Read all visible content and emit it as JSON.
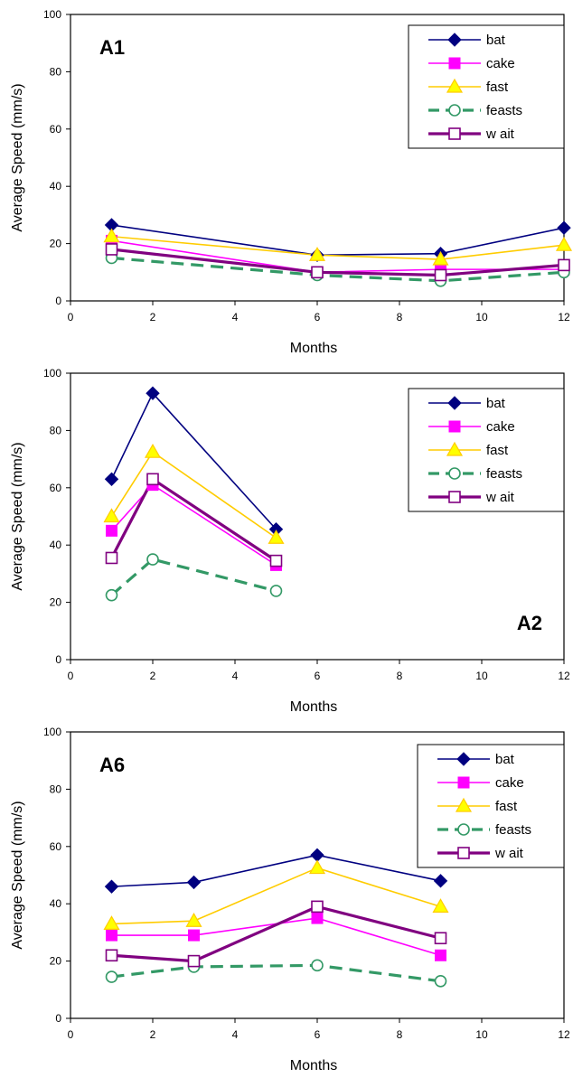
{
  "colors": {
    "bat": "#000080",
    "cake": "#ff00ff",
    "fast": "#ffcc00",
    "fast_fill": "#ffff00",
    "feasts": "#339966",
    "wait": "#800080"
  },
  "legend": [
    "bat",
    "cake",
    "fast",
    "feasts",
    "w ait"
  ],
  "chart_data": [
    {
      "type": "line",
      "panel_label": "A1",
      "panel_label_position": "top-left",
      "xlabel": "Months",
      "ylabel": "Average Speed (mm/s)",
      "xlim": [
        0,
        12
      ],
      "ylim": [
        0,
        100
      ],
      "xticks": [
        0,
        2,
        4,
        6,
        8,
        10,
        12
      ],
      "yticks": [
        0,
        20,
        40,
        60,
        80,
        100
      ],
      "grid": false,
      "legend_position": "top-right",
      "x": [
        1,
        6,
        9,
        12
      ],
      "series": [
        {
          "name": "bat",
          "values": [
            26.5,
            16,
            16.5,
            25.5
          ]
        },
        {
          "name": "cake",
          "values": [
            21,
            10,
            11,
            11
          ]
        },
        {
          "name": "fast",
          "values": [
            22.5,
            16,
            14.5,
            19.5
          ]
        },
        {
          "name": "feasts",
          "values": [
            15,
            9,
            7,
            10
          ]
        },
        {
          "name": "w ait",
          "values": [
            18,
            10,
            9,
            12.5
          ]
        }
      ]
    },
    {
      "type": "line",
      "panel_label": "A2",
      "panel_label_position": "bottom-right",
      "xlabel": "Months",
      "ylabel": "Average Speed (mm/s)",
      "xlim": [
        0,
        12
      ],
      "ylim": [
        0,
        100
      ],
      "xticks": [
        0,
        2,
        4,
        6,
        8,
        10,
        12
      ],
      "yticks": [
        0,
        20,
        40,
        60,
        80,
        100
      ],
      "grid": false,
      "legend_position": "top-right",
      "x": [
        1,
        2,
        5
      ],
      "series": [
        {
          "name": "bat",
          "values": [
            63,
            93,
            45.5
          ]
        },
        {
          "name": "cake",
          "values": [
            45,
            61,
            33
          ]
        },
        {
          "name": "fast",
          "values": [
            50,
            72.5,
            42.5
          ]
        },
        {
          "name": "feasts",
          "values": [
            22.5,
            35,
            24
          ]
        },
        {
          "name": "w ait",
          "values": [
            35.5,
            63,
            34.5
          ]
        }
      ]
    },
    {
      "type": "line",
      "panel_label": "A6",
      "panel_label_position": "top-left",
      "xlabel": "Months",
      "ylabel": "Average Speed (mm/s)",
      "xlim": [
        0,
        12
      ],
      "ylim": [
        0,
        100
      ],
      "xticks": [
        0,
        2,
        4,
        6,
        8,
        10,
        12
      ],
      "yticks": [
        0,
        20,
        40,
        60,
        80,
        100
      ],
      "grid": false,
      "legend_position": "top-right",
      "x": [
        1,
        3,
        6,
        9
      ],
      "series": [
        {
          "name": "bat",
          "values": [
            46,
            47.5,
            57,
            48
          ]
        },
        {
          "name": "cake",
          "values": [
            29,
            29,
            35,
            22
          ]
        },
        {
          "name": "fast",
          "values": [
            33,
            34,
            52.5,
            39
          ]
        },
        {
          "name": "feasts",
          "values": [
            14.5,
            18,
            18.5,
            13
          ]
        },
        {
          "name": "w ait",
          "values": [
            22,
            20,
            39,
            28
          ]
        }
      ]
    }
  ]
}
